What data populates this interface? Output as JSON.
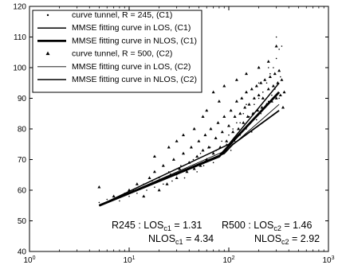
{
  "chart_data": {
    "type": "scatter",
    "xscale": "log",
    "xlim": [
      1,
      1000
    ],
    "ylim": [
      40,
      120
    ],
    "grid": false,
    "legend_placement": "top-left",
    "x_ticks": [
      1,
      10,
      100,
      1000
    ],
    "x_tick_labels": [
      {
        "base": "10",
        "exp": "0"
      },
      {
        "base": "10",
        "exp": "1"
      },
      {
        "base": "10",
        "exp": "2"
      },
      {
        "base": "10",
        "exp": "3"
      }
    ],
    "y_ticks": [
      40,
      50,
      60,
      70,
      80,
      90,
      100,
      110,
      120
    ],
    "series": [
      {
        "name": "curve tunnel, R = 245, (C1)",
        "kind": "scatter",
        "marker": "dot",
        "color": "#000000",
        "points": [
          [
            5,
            56
          ],
          [
            6,
            57
          ],
          [
            7,
            58
          ],
          [
            8,
            56.5
          ],
          [
            9,
            59
          ],
          [
            10,
            58
          ],
          [
            11,
            60
          ],
          [
            12,
            59
          ],
          [
            14,
            62
          ],
          [
            15,
            60
          ],
          [
            17,
            63
          ],
          [
            18,
            61
          ],
          [
            20,
            64
          ],
          [
            22,
            62
          ],
          [
            25,
            66
          ],
          [
            27,
            63
          ],
          [
            30,
            65
          ],
          [
            33,
            68
          ],
          [
            36,
            64
          ],
          [
            40,
            67
          ],
          [
            44,
            70
          ],
          [
            48,
            66
          ],
          [
            52,
            72
          ],
          [
            56,
            68
          ],
          [
            60,
            70
          ],
          [
            65,
            74
          ],
          [
            70,
            69
          ],
          [
            75,
            73
          ],
          [
            80,
            71
          ],
          [
            85,
            76
          ],
          [
            90,
            72
          ],
          [
            95,
            75
          ],
          [
            100,
            78
          ],
          [
            105,
            73
          ],
          [
            110,
            80
          ],
          [
            115,
            76
          ],
          [
            120,
            82
          ],
          [
            130,
            78
          ],
          [
            140,
            85
          ],
          [
            150,
            80
          ],
          [
            160,
            84
          ],
          [
            170,
            79
          ],
          [
            180,
            88
          ],
          [
            190,
            83
          ],
          [
            200,
            90
          ],
          [
            210,
            85
          ],
          [
            220,
            92
          ],
          [
            230,
            87
          ],
          [
            240,
            95
          ],
          [
            250,
            89
          ],
          [
            260,
            98
          ],
          [
            270,
            91
          ],
          [
            280,
            100
          ],
          [
            290,
            93
          ],
          [
            300,
            103
          ],
          [
            310,
            95
          ],
          [
            320,
            106
          ],
          [
            330,
            97
          ],
          [
            340,
            107
          ],
          [
            300,
            110
          ],
          [
            250,
            100
          ],
          [
            200,
            95
          ],
          [
            280,
            94
          ],
          [
            320,
            90
          ],
          [
            150,
            88
          ],
          [
            130,
            82
          ]
        ]
      },
      {
        "name": "MMSE fitting curve in LOS, (C1)",
        "kind": "line",
        "width": 1.5,
        "color": "#000000",
        "points": [
          [
            5,
            55
          ],
          [
            100,
            75
          ],
          [
            320,
            95
          ]
        ]
      },
      {
        "name": "MMSE fitting curve in NLOS, (C1)",
        "kind": "line",
        "width": 2.8,
        "color": "#000000",
        "points": [
          [
            5,
            55
          ],
          [
            80,
            71
          ],
          [
            110,
            76
          ],
          [
            320,
            92
          ]
        ]
      },
      {
        "name": "curve tunnel, R = 500, (C2)",
        "kind": "scatter",
        "marker": "triangle",
        "color": "#000000",
        "points": [
          [
            5,
            61
          ],
          [
            7,
            58
          ],
          [
            10,
            60
          ],
          [
            12,
            62
          ],
          [
            14,
            58
          ],
          [
            16,
            64
          ],
          [
            18,
            66
          ],
          [
            20,
            60
          ],
          [
            22,
            68
          ],
          [
            24,
            62
          ],
          [
            26,
            65
          ],
          [
            28,
            70
          ],
          [
            30,
            64
          ],
          [
            32,
            67
          ],
          [
            35,
            72
          ],
          [
            38,
            66
          ],
          [
            40,
            69
          ],
          [
            42,
            74
          ],
          [
            45,
            67
          ],
          [
            48,
            71
          ],
          [
            50,
            76
          ],
          [
            52,
            68
          ],
          [
            55,
            73
          ],
          [
            58,
            78
          ],
          [
            60,
            70
          ],
          [
            63,
            74
          ],
          [
            66,
            80
          ],
          [
            70,
            72
          ],
          [
            74,
            77
          ],
          [
            78,
            82
          ],
          [
            82,
            74
          ],
          [
            86,
            79
          ],
          [
            90,
            84
          ],
          [
            95,
            76
          ],
          [
            100,
            81
          ],
          [
            105,
            86
          ],
          [
            110,
            79
          ],
          [
            115,
            84
          ],
          [
            120,
            89
          ],
          [
            125,
            80
          ],
          [
            130,
            85
          ],
          [
            135,
            90
          ],
          [
            140,
            82
          ],
          [
            145,
            87
          ],
          [
            150,
            92
          ],
          [
            155,
            84
          ],
          [
            160,
            88
          ],
          [
            170,
            93
          ],
          [
            175,
            85
          ],
          [
            180,
            90
          ],
          [
            190,
            94
          ],
          [
            195,
            86
          ],
          [
            200,
            91
          ],
          [
            210,
            95
          ],
          [
            215,
            87
          ],
          [
            220,
            90
          ],
          [
            230,
            96
          ],
          [
            240,
            88
          ],
          [
            250,
            93
          ],
          [
            260,
            97
          ],
          [
            270,
            89
          ],
          [
            280,
            94
          ],
          [
            290,
            98
          ],
          [
            300,
            90
          ],
          [
            310,
            95
          ],
          [
            320,
            99
          ],
          [
            330,
            91
          ],
          [
            340,
            96
          ],
          [
            350,
            87
          ],
          [
            360,
            92
          ],
          [
            45,
            80
          ],
          [
            60,
            86
          ],
          [
            35,
            78
          ],
          [
            25,
            74
          ],
          [
            18,
            71
          ],
          [
            70,
            92
          ],
          [
            90,
            94
          ],
          [
            120,
            96
          ],
          [
            55,
            84
          ],
          [
            30,
            76
          ],
          [
            150,
            98
          ],
          [
            250,
            102
          ],
          [
            300,
            107
          ],
          [
            200,
            100
          ],
          [
            80,
            89
          ]
        ]
      },
      {
        "name": "MMSE fitting curve in LOS, (C2)",
        "kind": "line",
        "width": 0.9,
        "color": "#000000",
        "points": [
          [
            5,
            55
          ],
          [
            95,
            73
          ],
          [
            320,
            88
          ]
        ]
      },
      {
        "name": "MMSE fitting curve in NLOS, (C2)",
        "kind": "line",
        "width": 1.8,
        "color": "#000000",
        "points": [
          [
            5,
            55
          ],
          [
            90,
            72
          ],
          [
            110,
            75
          ],
          [
            320,
            86
          ]
        ]
      }
    ]
  },
  "legend": {
    "entries": [
      {
        "label": "curve tunnel, R = 245, (C1)",
        "symbol": "dot"
      },
      {
        "label": "MMSE fitting curve in LOS, (C1)",
        "symbol": "line-medium"
      },
      {
        "label": "MMSE fitting curve in NLOS, (C1)",
        "symbol": "line-thick"
      },
      {
        "label": "curve tunnel, R = 500, (C2)",
        "symbol": "triangle"
      },
      {
        "label": "MMSE fitting curve in LOS, (C2)",
        "symbol": "line-thin"
      },
      {
        "label": "MMSE fitting curve in NLOS, (C2)",
        "symbol": "line-medium"
      }
    ]
  },
  "annotations": {
    "r245_prefix": "R245 : LOS",
    "r245_los_sub": "c1",
    "r245_los_value": " = 1.31",
    "r245_nlos_prefix": "NLOS",
    "r245_nlos_sub": "c1",
    "r245_nlos_value": " = 4.34",
    "r500_prefix": "R500 : LOS",
    "r500_los_sub": "c2",
    "r500_los_value": " = 1.46",
    "r500_nlos_prefix": "NLOS",
    "r500_nlos_sub": "c2",
    "r500_nlos_value": " = 2.92"
  }
}
